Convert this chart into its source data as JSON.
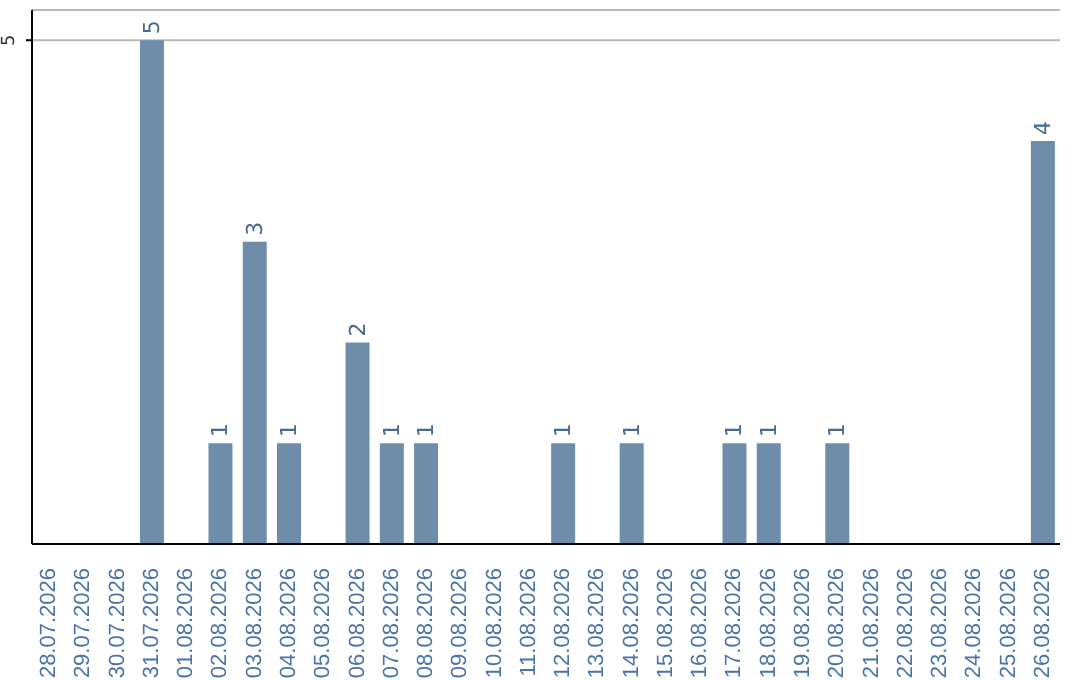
{
  "chart_data": {
    "type": "bar",
    "categories": [
      "28.07.2026",
      "29.07.2026",
      "30.07.2026",
      "31.07.2026",
      "01.08.2026",
      "02.08.2026",
      "03.08.2026",
      "04.08.2026",
      "05.08.2026",
      "06.08.2026",
      "07.08.2026",
      "08.08.2026",
      "09.08.2026",
      "10.08.2026",
      "11.08.2026",
      "12.08.2026",
      "13.08.2026",
      "14.08.2026",
      "15.08.2026",
      "16.08.2026",
      "17.08.2026",
      "18.08.2026",
      "19.08.2026",
      "20.08.2026",
      "21.08.2026",
      "22.08.2026",
      "23.08.2026",
      "24.08.2026",
      "25.08.2026",
      "26.08.2026"
    ],
    "values": [
      0,
      0,
      0,
      5,
      0,
      1,
      3,
      1,
      0,
      2,
      1,
      1,
      0,
      0,
      0,
      1,
      0,
      1,
      0,
      0,
      1,
      1,
      0,
      1,
      0,
      0,
      0,
      0,
      0,
      4
    ],
    "value_labels": [
      null,
      null,
      null,
      "5",
      null,
      "1",
      "3",
      "1",
      null,
      "2",
      "1",
      "1",
      null,
      null,
      null,
      "1",
      null,
      "1",
      null,
      null,
      "1",
      "1",
      null,
      "1",
      null,
      null,
      null,
      null,
      null,
      "4"
    ],
    "color": "#6e8dab",
    "ylim": [
      0,
      5.3
    ],
    "yticks": [
      5
    ],
    "grid": "y"
  }
}
